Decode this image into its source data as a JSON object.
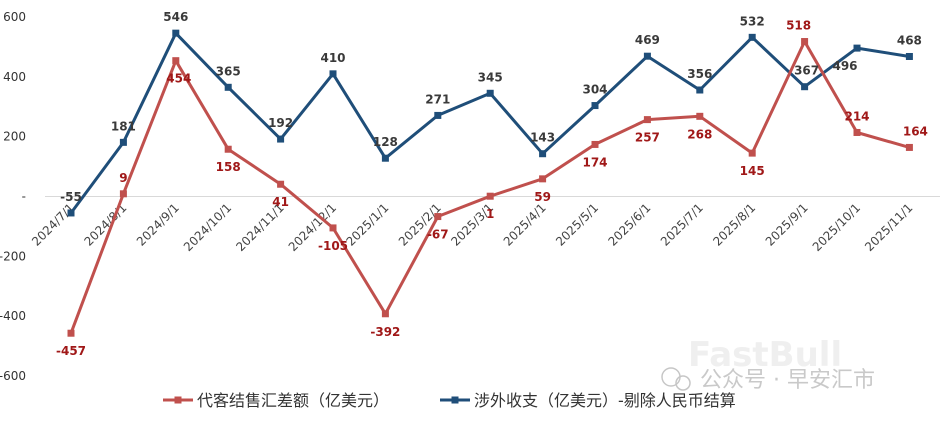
{
  "chart_data": {
    "type": "line",
    "categories": [
      "2024/7/1",
      "2024/8/1",
      "2024/9/1",
      "2024/10/1",
      "2024/11/1",
      "2024/12/1",
      "2025/1/1",
      "2025/2/1",
      "2025/3/1",
      "2025/4/1",
      "2025/5/1",
      "2025/6/1",
      "2025/7/1",
      "2025/8/1",
      "2025/9/1",
      "2025/10/1",
      "2025/11/1"
    ],
    "series": [
      {
        "name": "代客结售汇差额（亿美元）",
        "color": "#c0504d",
        "values": [
          -457,
          9,
          454,
          158,
          41,
          -105,
          -392,
          -67,
          1,
          59,
          174,
          257,
          268,
          145,
          518,
          214,
          164
        ],
        "labels": [
          "-457",
          "9",
          "454",
          "158",
          "41",
          "-105",
          "-392",
          "-67",
          "1",
          "59",
          "174",
          "257",
          "268",
          "145",
          "518",
          "214",
          "164"
        ]
      },
      {
        "name": "涉外收支（亿美元）-剔除人民币结算",
        "color": "#1f4e79",
        "values": [
          -55,
          181,
          546,
          365,
          192,
          410,
          128,
          271,
          345,
          143,
          304,
          469,
          356,
          532,
          367,
          496,
          468
        ],
        "labels": [
          "-55",
          "181",
          "546",
          "365",
          "192",
          "410",
          "128",
          "271",
          "345",
          "143",
          "304",
          "469",
          "356",
          "532",
          "367",
          "496",
          "468"
        ]
      }
    ],
    "y_ticks": [
      600,
      400,
      200,
      0,
      -200,
      -400,
      -600
    ],
    "y_tick_labels": [
      "600",
      "400",
      "200",
      "-",
      "-200",
      "-400",
      "-600"
    ],
    "ylim": [
      -600,
      600
    ],
    "grid": false,
    "legend_position": "bottom"
  },
  "watermark": {
    "brand": "FastBull",
    "source": "公众号 · 早安汇市"
  }
}
